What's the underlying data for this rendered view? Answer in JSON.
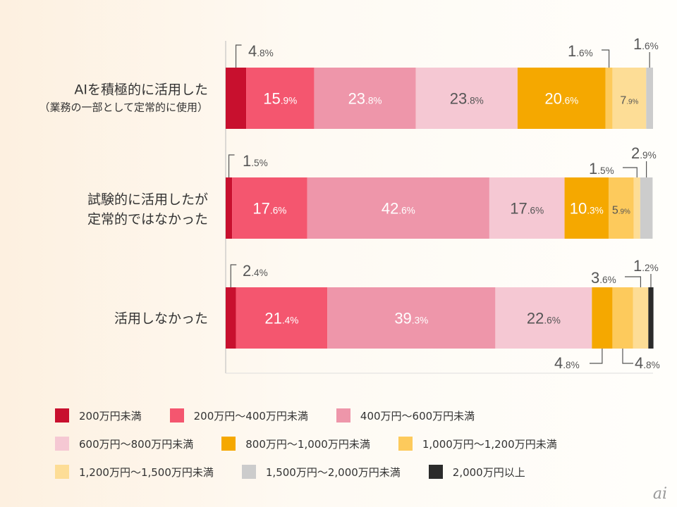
{
  "chart_data": {
    "type": "bar",
    "orientation": "horizontal-stacked-100",
    "categories": [
      "AIを積極的に活用した（業務の一部として定常的に使用）",
      "試験的に活用したが定常的ではなかった",
      "活用しなかった"
    ],
    "category_lines": [
      [
        "AIを積極的に活用した",
        "（業務の一部として定常的に使用）"
      ],
      [
        "試験的に活用したが",
        "定常的ではなかった"
      ],
      [
        "活用しなかった"
      ]
    ],
    "series": [
      {
        "name": "200万円未満",
        "color": "#c8102e",
        "values": [
          4.8,
          1.5,
          2.4
        ]
      },
      {
        "name": "200万円～400万円未満",
        "color": "#f4566f",
        "values": [
          15.9,
          17.6,
          21.4
        ]
      },
      {
        "name": "400万円～600万円未満",
        "color": "#ee96aa",
        "values": [
          23.8,
          42.6,
          39.3
        ]
      },
      {
        "name": "600万円～800万円未満",
        "color": "#f5c8d3",
        "values": [
          23.8,
          17.6,
          22.6
        ]
      },
      {
        "name": "800万円～1,000万円未満",
        "color": "#f5a800",
        "values": [
          20.6,
          10.3,
          4.8
        ]
      },
      {
        "name": "1,000万円～1,200万円未満",
        "color": "#fdca5c",
        "values": [
          1.6,
          5.9,
          4.8
        ]
      },
      {
        "name": "1,200万円～1,500万円未満",
        "color": "#fddd96",
        "values": [
          7.9,
          1.5,
          3.6
        ]
      },
      {
        "name": "1,500万円～2,000万円未満",
        "color": "#cccccc",
        "values": [
          1.6,
          2.9,
          0
        ]
      },
      {
        "name": "2,000万円以上",
        "color": "#2b2b2b",
        "values": [
          0,
          0,
          1.2
        ]
      }
    ],
    "unit": "%",
    "xlim": [
      0,
      100
    ],
    "grid": false,
    "legend_position": "bottom"
  },
  "logo": "ai"
}
